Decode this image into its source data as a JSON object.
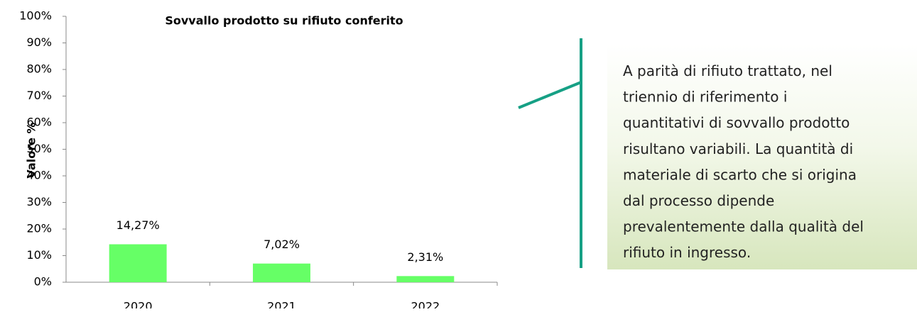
{
  "chart_data": {
    "type": "bar",
    "title": "Sovvallo prodotto su rifiuto conferito",
    "y_label": "Valore %",
    "categories": [
      "2020",
      "2021",
      "2022"
    ],
    "values": [
      14.27,
      7.02,
      2.31
    ],
    "value_labels": [
      "14,27%",
      "7,02%",
      "2,31%"
    ],
    "color": "#66ff66",
    "ylim": [
      0,
      100
    ],
    "yticks": [
      {
        "value": 0,
        "label": "0%"
      },
      {
        "value": 10,
        "label": "10%"
      },
      {
        "value": 20,
        "label": "20%"
      },
      {
        "value": 30,
        "label": "30%"
      },
      {
        "value": 40,
        "label": "40%"
      },
      {
        "value": 50,
        "label": "50%"
      },
      {
        "value": 60,
        "label": "60%"
      },
      {
        "value": 70,
        "label": "70%"
      },
      {
        "value": 80,
        "label": "80%"
      },
      {
        "value": 90,
        "label": "90%"
      },
      {
        "value": 100,
        "label": "100%"
      }
    ],
    "grid": false,
    "annotation": [
      "A parità di rifiuto trattato, nel",
      "triennio di riferimento i",
      "quantitativi di sovvallo prodotto",
      "risultano variabili. La quantità di",
      "materiale di scarto che si origina",
      "dal processo dipende",
      "prevalentemente dalla qualità del",
      "rifiuto in ingresso."
    ]
  }
}
